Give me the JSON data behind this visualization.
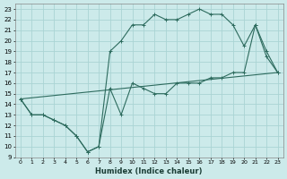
{
  "xlabel": "Humidex (Indice chaleur)",
  "bg_color": "#cceaea",
  "grid_color": "#aad4d4",
  "line_color": "#2d6b5e",
  "xlim": [
    -0.5,
    23.5
  ],
  "ylim": [
    9,
    23.5
  ],
  "xticks": [
    0,
    1,
    2,
    3,
    4,
    5,
    6,
    7,
    8,
    9,
    10,
    11,
    12,
    13,
    14,
    15,
    16,
    17,
    18,
    19,
    20,
    21,
    22,
    23
  ],
  "yticks": [
    9,
    10,
    11,
    12,
    13,
    14,
    15,
    16,
    17,
    18,
    19,
    20,
    21,
    22,
    23
  ],
  "line1_x": [
    0,
    1,
    2,
    3,
    4,
    5,
    6,
    7,
    8,
    9,
    10,
    11,
    12,
    13,
    14,
    15,
    16,
    17,
    18,
    19,
    20,
    21,
    22,
    23
  ],
  "line1_y": [
    14.5,
    13,
    13,
    12.5,
    12,
    11,
    9.5,
    10,
    15.5,
    13,
    16,
    15.5,
    15,
    15,
    16,
    16,
    16,
    16.5,
    16.5,
    17,
    17,
    21.5,
    19,
    17
  ],
  "line2_x": [
    0,
    1,
    2,
    3,
    4,
    5,
    6,
    7,
    8,
    9,
    10,
    11,
    12,
    13,
    14,
    15,
    16,
    17,
    18,
    19,
    20,
    21,
    22,
    23
  ],
  "line2_y": [
    14.5,
    13,
    13,
    12.5,
    12,
    11,
    9.5,
    10,
    19,
    20,
    21.5,
    21.5,
    22.5,
    22,
    22,
    22.5,
    23,
    22.5,
    22.5,
    21.5,
    19.5,
    21.5,
    18.5,
    17
  ],
  "line3_x": [
    0,
    23
  ],
  "line3_y": [
    14.5,
    17
  ]
}
